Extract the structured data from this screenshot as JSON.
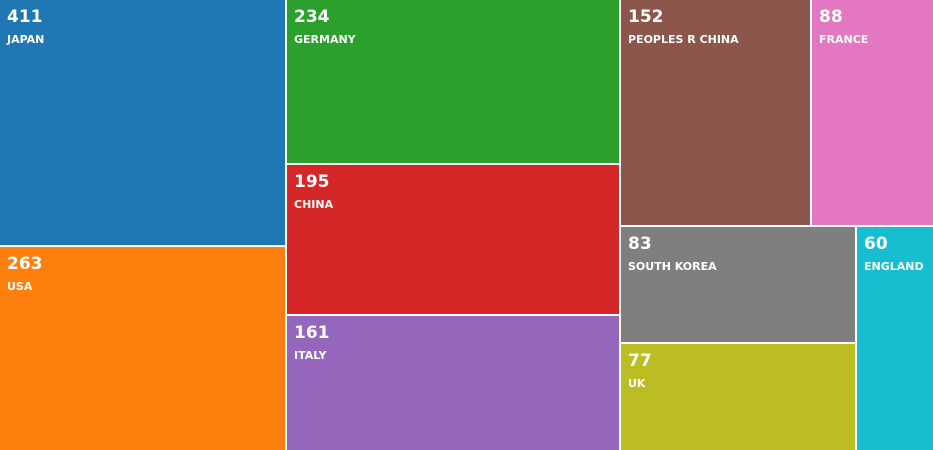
{
  "chart_data": {
    "type": "treemap",
    "title": "",
    "items": [
      {
        "label": "JAPAN",
        "value": 411,
        "color": "#1f77b4"
      },
      {
        "label": "USA",
        "value": 263,
        "color": "#ff7f0e"
      },
      {
        "label": "GERMANY",
        "value": 234,
        "color": "#2ca02c"
      },
      {
        "label": "CHINA",
        "value": 195,
        "color": "#d62728"
      },
      {
        "label": "ITALY",
        "value": 161,
        "color": "#9467bd"
      },
      {
        "label": "PEOPLES R CHINA",
        "value": 152,
        "color": "#8c564b"
      },
      {
        "label": "FRANCE",
        "value": 88,
        "color": "#e377c2"
      },
      {
        "label": "SOUTH KOREA",
        "value": 83,
        "color": "#7f7f7f"
      },
      {
        "label": "UK",
        "value": 77,
        "color": "#bcbd22"
      },
      {
        "label": "ENGLAND",
        "value": 60,
        "color": "#17becf"
      }
    ]
  }
}
